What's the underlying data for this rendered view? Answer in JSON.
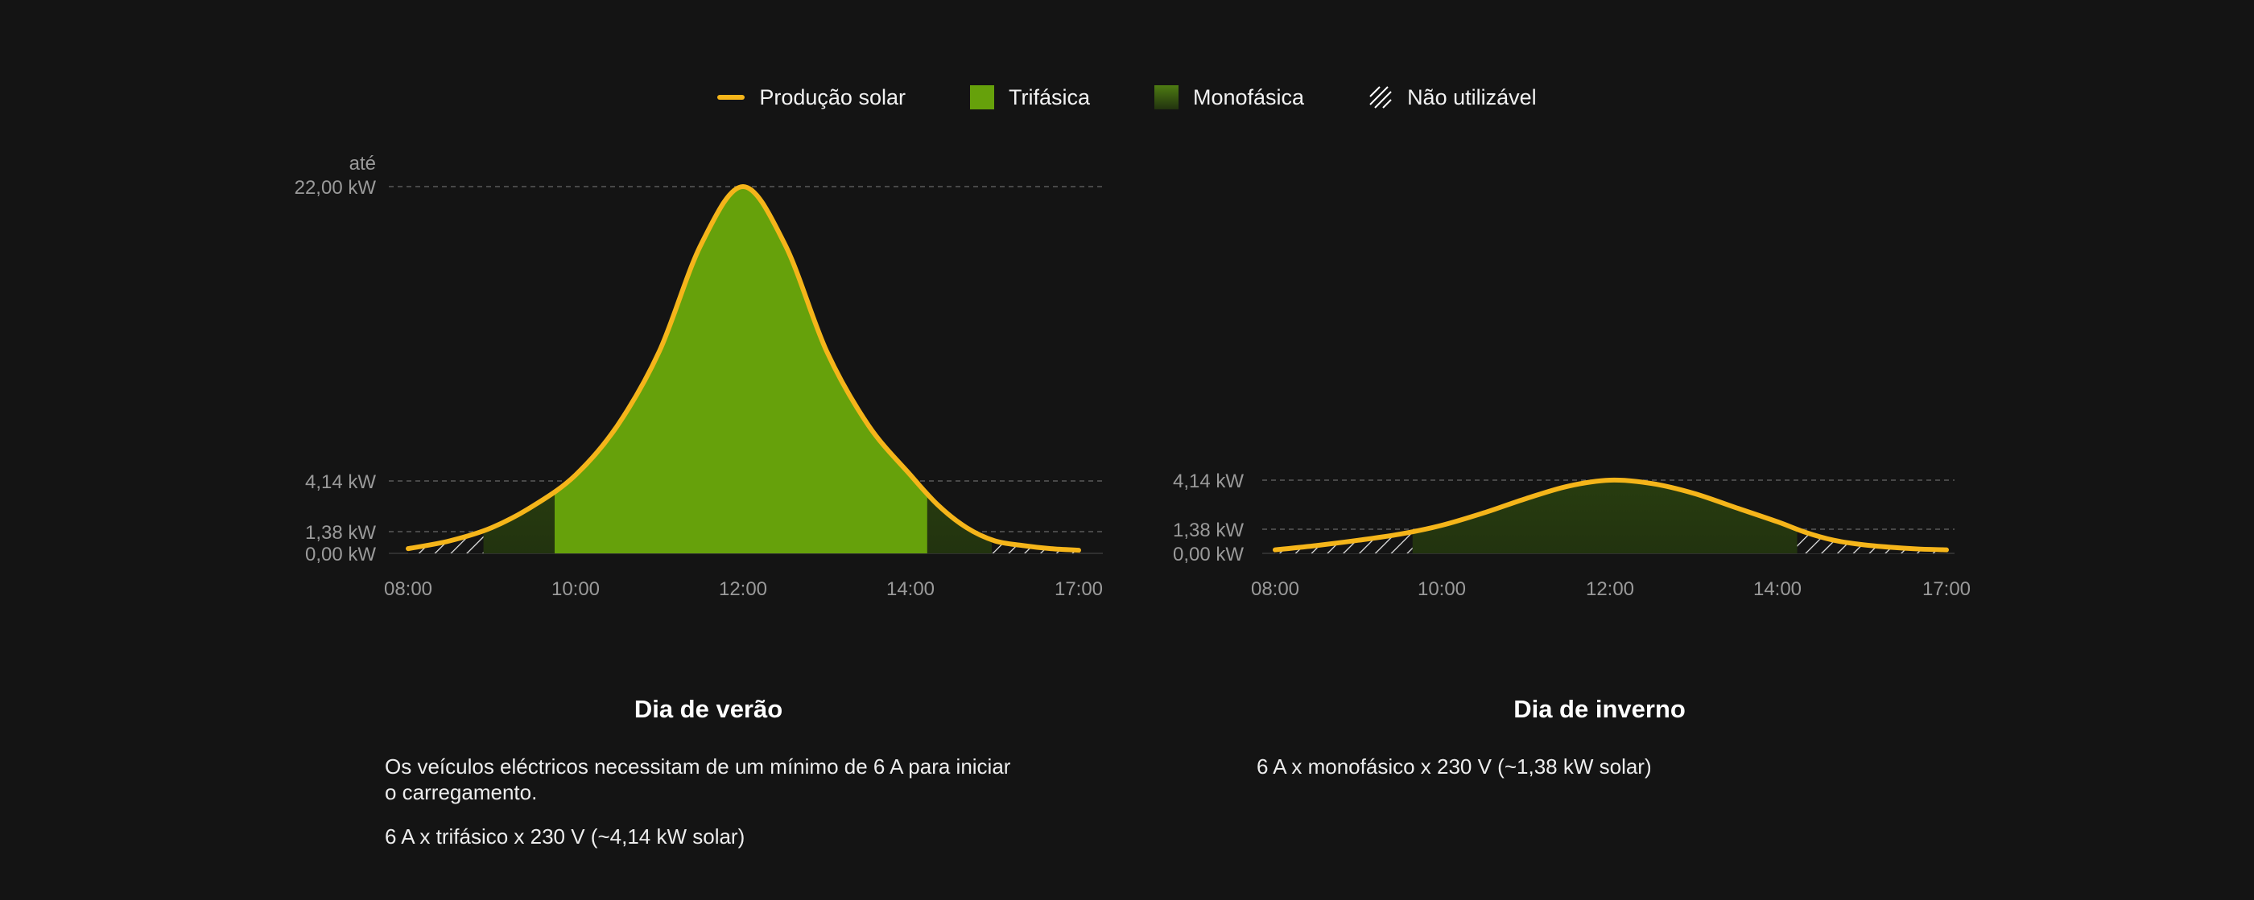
{
  "legend": {
    "solar": "Produção solar",
    "tri": "Trifásica",
    "mono": "Monofásica",
    "unusable": "Não utilizável"
  },
  "colors": {
    "background": "#141414",
    "solar_line": "#f5b51a",
    "trifasica": "#66a10b",
    "monofasica_top": "#4e7c12",
    "monofasica_bottom": "#22330f",
    "grid": "#5a5a5a",
    "tick_label": "#9a9a9a"
  },
  "chart_data": [
    {
      "type": "area",
      "id": "summer",
      "title": "Dia de verão",
      "x_ticks": [
        "08:00",
        "10:00",
        "12:00",
        "14:00",
        "17:00"
      ],
      "x_range_hours": [
        8,
        17
      ],
      "y_ticks": [
        {
          "value": 0,
          "label": "0,00 kW"
        },
        {
          "value": 1.38,
          "label": "1,38 kW"
        },
        {
          "value": 4.14,
          "label": "4,14 kW"
        },
        {
          "value": 22.0,
          "label": "22,00 kW",
          "prefix": "até"
        }
      ],
      "ylim": [
        0,
        22
      ],
      "series": [
        {
          "name": "Produção solar",
          "x": [
            8.0,
            8.5,
            9.0,
            9.5,
            10.0,
            10.5,
            11.0,
            11.5,
            12.0,
            12.5,
            13.0,
            13.5,
            14.0,
            14.5,
            15.0,
            15.5,
            16.0,
            16.5,
            17.0
          ],
          "y": [
            0.3,
            0.8,
            1.6,
            2.8,
            4.5,
            7.5,
            12.0,
            18.5,
            22.0,
            18.5,
            12.0,
            7.5,
            4.5,
            2.8,
            1.6,
            0.8,
            0.5,
            0.3,
            0.2
          ]
        }
      ],
      "zones": [
        {
          "type": "unusable",
          "from": 8.0,
          "to": 8.9
        },
        {
          "type": "monofasica",
          "from": 8.9,
          "to": 9.75
        },
        {
          "type": "trifasica",
          "from": 9.75,
          "to": 14.3
        },
        {
          "type": "monofasica",
          "from": 14.3,
          "to": 15.45
        },
        {
          "type": "unusable",
          "from": 15.45,
          "to": 17.0
        }
      ]
    },
    {
      "type": "area",
      "id": "winter",
      "title": "Dia de inverno",
      "x_ticks": [
        "08:00",
        "10:00",
        "12:00",
        "14:00",
        "17:00"
      ],
      "x_range_hours": [
        8,
        17
      ],
      "y_ticks": [
        {
          "value": 0,
          "label": "0,00 kW"
        },
        {
          "value": 1.38,
          "label": "1,38 kW"
        },
        {
          "value": 4.14,
          "label": "4,14 kW"
        }
      ],
      "ylim": [
        0,
        4.14
      ],
      "series": [
        {
          "name": "Produção solar",
          "x": [
            8.0,
            8.5,
            9.0,
            9.5,
            10.0,
            10.5,
            11.0,
            11.5,
            12.0,
            12.5,
            13.0,
            13.5,
            14.0,
            14.5,
            15.0,
            15.5,
            16.0,
            16.5,
            17.0
          ],
          "y": [
            0.2,
            0.45,
            0.75,
            1.1,
            1.6,
            2.3,
            3.1,
            3.8,
            4.14,
            3.95,
            3.4,
            2.6,
            1.8,
            1.2,
            0.75,
            0.5,
            0.35,
            0.25,
            0.2
          ]
        }
      ],
      "zones": [
        {
          "type": "unusable",
          "from": 8.0,
          "to": 9.65
        },
        {
          "type": "monofasica",
          "from": 9.65,
          "to": 14.35
        },
        {
          "type": "unusable",
          "from": 14.35,
          "to": 17.0
        }
      ]
    }
  ],
  "captions": {
    "summer": {
      "title": "Dia de verão",
      "line1": "Os veículos eléctricos necessitam de um mínimo de 6 A para iniciar",
      "line2": "o carregamento.",
      "line3": "6 A x trifásico x 230 V (~4,14 kW solar)"
    },
    "winter": {
      "title": "Dia de inverno",
      "line1": "6 A x monofásico x 230 V (~1,38 kW solar)"
    }
  }
}
